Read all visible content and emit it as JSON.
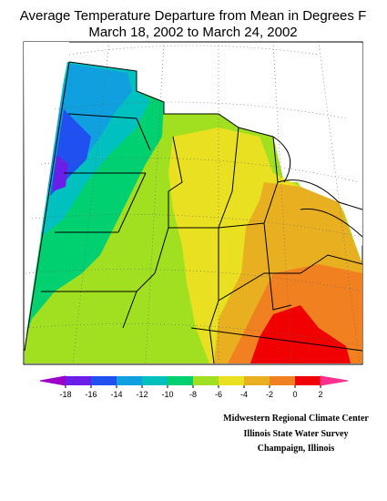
{
  "title": "Average Temperature Departure from Mean in Degrees F",
  "subtitle": "March 18, 2002 to March 24, 2002",
  "legend": {
    "ticks": [
      -18,
      -16,
      -14,
      -12,
      -10,
      -8,
      -6,
      -4,
      -2,
      0,
      2
    ],
    "colors": [
      "#9a00c8",
      "#6a1ee8",
      "#2050f0",
      "#10a0e0",
      "#00c0c0",
      "#00d070",
      "#a0e020",
      "#e8e020",
      "#e8b020",
      "#f08020",
      "#f00000",
      "#ff3090"
    ]
  },
  "credits": [
    "Midwestern Regional Climate Center",
    "Illinois State Water Survey",
    "Champaign, Illinois"
  ]
}
